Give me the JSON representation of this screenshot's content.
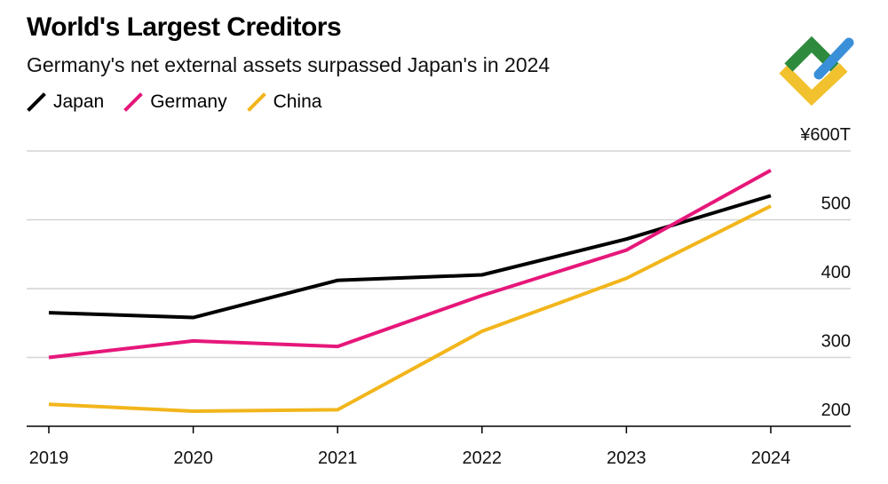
{
  "chart_data": {
    "type": "line",
    "title": "World's Largest Creditors",
    "subtitle": "Germany's net external assets surpassed Japan's in 2024",
    "x": [
      "2019",
      "2020",
      "2021",
      "2022",
      "2023",
      "2024"
    ],
    "series": [
      {
        "name": "Japan",
        "color": "#000000",
        "values": [
          365,
          358,
          412,
          420,
          472,
          535
        ]
      },
      {
        "name": "Germany",
        "color": "#e6177a",
        "values": [
          300,
          324,
          316,
          390,
          456,
          572
        ]
      },
      {
        "name": "China",
        "color": "#f2b51b",
        "values": [
          232,
          222,
          224,
          338,
          415,
          520
        ]
      }
    ],
    "y_ticks": [
      {
        "value": 600,
        "label": "¥600T"
      },
      {
        "value": 500,
        "label": "500"
      },
      {
        "value": 400,
        "label": "400"
      },
      {
        "value": 300,
        "label": "300"
      },
      {
        "value": 200,
        "label": "200"
      }
    ],
    "ylim": [
      200,
      600
    ],
    "ylabel": "",
    "xlabel": "",
    "grid": true,
    "legend_position": "top-left"
  },
  "logo": {
    "name": "corner-logo",
    "colors": [
      "#2e8b3d",
      "#3a8fd9",
      "#f2c12e"
    ]
  }
}
